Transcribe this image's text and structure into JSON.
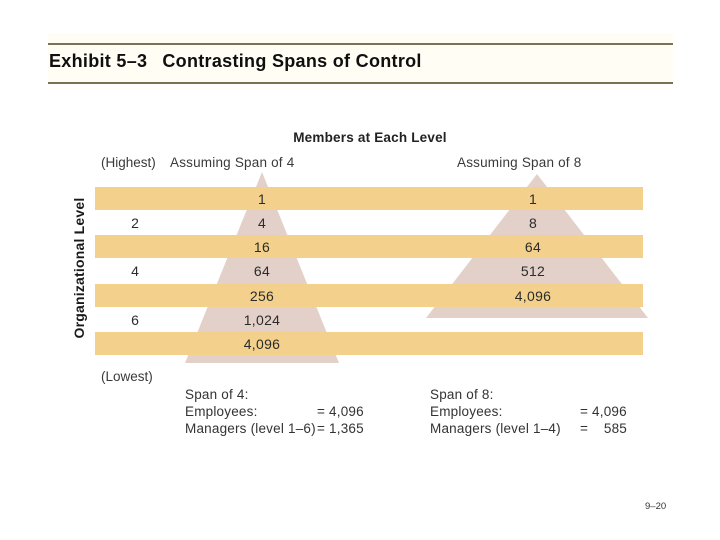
{
  "slide": {
    "exhibit_label": "Exhibit 5–3",
    "title": "Contrasting Spans of Control",
    "page_number": "9–20"
  },
  "diagram": {
    "heading": "Members at Each Level",
    "axis_label": "Organizational Level",
    "highest_label": "(Highest)",
    "lowest_label": "(Lowest)",
    "span4_header": "Assuming Span of 4",
    "span8_header": "Assuming Span of 8",
    "org_levels": [
      "2",
      "4",
      "6"
    ],
    "span4_values": [
      "1",
      "4",
      "16",
      "64",
      "256",
      "1,024",
      "4,096"
    ],
    "span8_values": [
      "1",
      "8",
      "64",
      "512",
      "4,096"
    ],
    "summary_span4": {
      "title": "Span of 4:",
      "employees_label": "Employees:",
      "employees_value": "= 4,096",
      "managers_label": "Managers (level 1–6)",
      "managers_value": "= 1,365"
    },
    "summary_span8": {
      "title": "Span of 8:",
      "employees_label": "Employees:",
      "employees_value": "= 4,096",
      "managers_label": "Managers (level 1–4)",
      "managers_value": "=    585"
    }
  },
  "colors": {
    "bar_fill": "#F3D18C",
    "pyramid_fill": "#E3D1C9",
    "title_rule": "#7A7058",
    "text": "#2B2B2B"
  }
}
